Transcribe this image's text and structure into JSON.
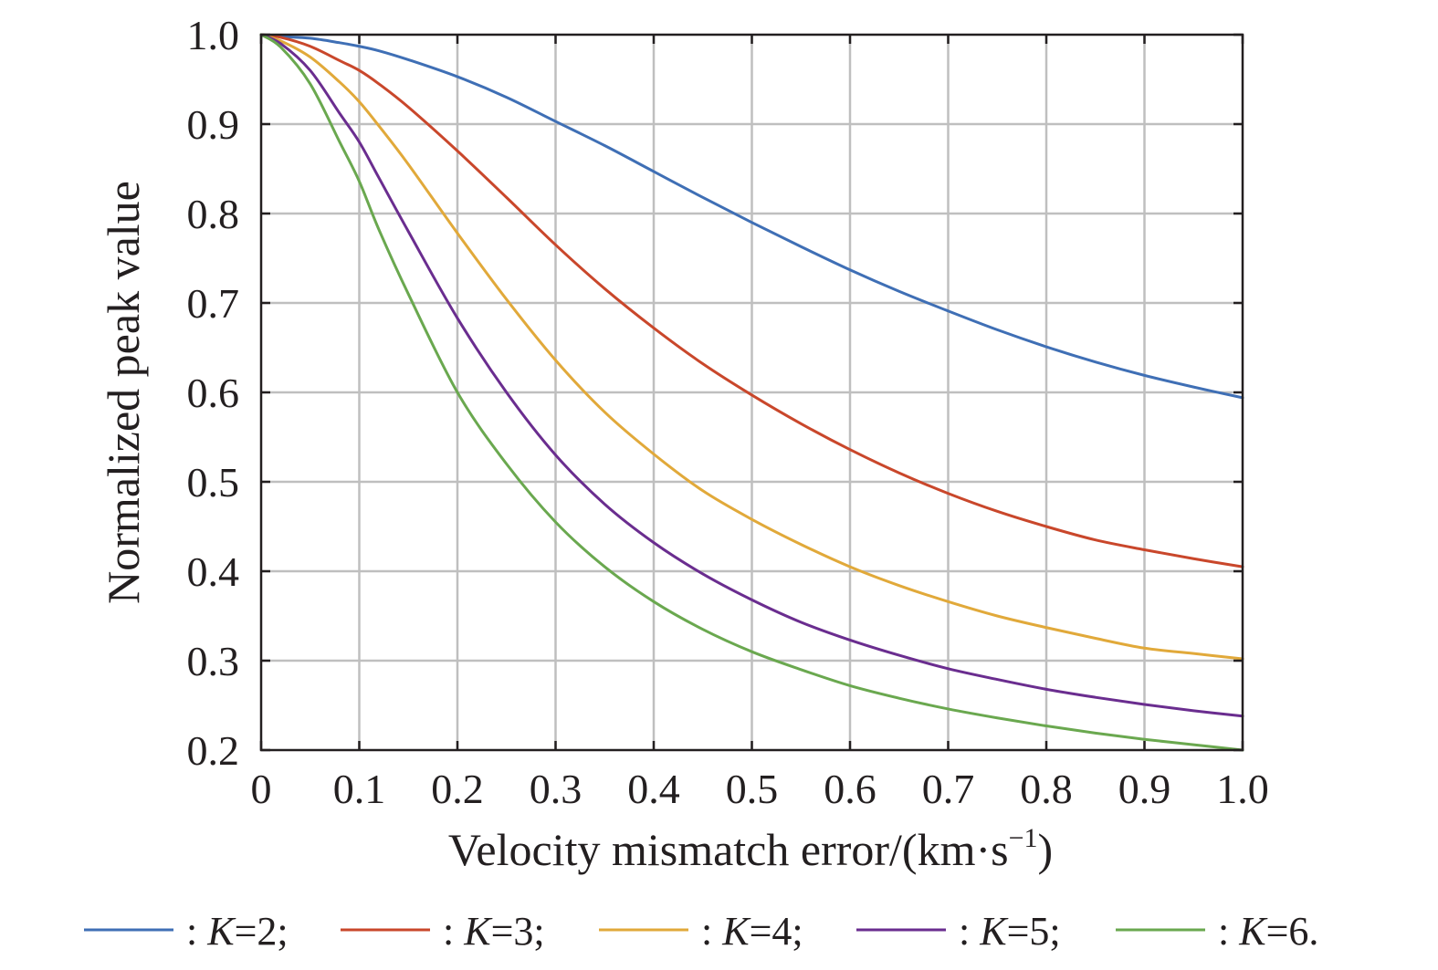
{
  "chart_data": {
    "type": "line",
    "title": "",
    "xlabel": "Velocity mismatch error/(km·s",
    "xlabel_superscript": "−1",
    "xlabel_close": ")",
    "ylabel": "Normalized peak value",
    "xlim": [
      0,
      1.0
    ],
    "ylim": [
      0.2,
      1.0
    ],
    "grid": true,
    "legend_position": "bottom",
    "x_ticks": [
      0,
      0.1,
      0.2,
      0.3,
      0.4,
      0.5,
      0.6,
      0.7,
      0.8,
      0.9,
      1.0
    ],
    "x_tick_labels": [
      "0",
      "0.1",
      "0.2",
      "0.3",
      "0.4",
      "0.5",
      "0.6",
      "0.7",
      "0.8",
      "0.9",
      "1.0"
    ],
    "y_ticks": [
      0.2,
      0.3,
      0.4,
      0.5,
      0.6,
      0.7,
      0.8,
      0.9,
      1.0
    ],
    "y_tick_labels": [
      "0.2",
      "0.3",
      "0.4",
      "0.5",
      "0.6",
      "0.7",
      "0.8",
      "0.9",
      "1.0"
    ],
    "x": [
      0,
      0.02,
      0.05,
      0.08,
      0.1,
      0.12,
      0.15,
      0.2,
      0.25,
      0.3,
      0.35,
      0.4,
      0.45,
      0.5,
      0.55,
      0.6,
      0.65,
      0.7,
      0.75,
      0.8,
      0.85,
      0.9,
      0.95,
      1.0
    ],
    "series": [
      {
        "name": "K=2",
        "legend_prefix": ": ",
        "legend_var": "K",
        "legend_suffix": "=2;",
        "color": "#3f6fb5",
        "values": [
          1.0,
          0.998,
          0.996,
          0.991,
          0.987,
          0.982,
          0.972,
          0.953,
          0.93,
          0.903,
          0.876,
          0.847,
          0.818,
          0.79,
          0.763,
          0.737,
          0.713,
          0.691,
          0.67,
          0.651,
          0.634,
          0.619,
          0.606,
          0.594
        ]
      },
      {
        "name": "K=3",
        "legend_prefix": ": ",
        "legend_var": "K",
        "legend_suffix": "=3;",
        "color": "#c9472b",
        "values": [
          1.0,
          0.997,
          0.987,
          0.971,
          0.96,
          0.945,
          0.919,
          0.87,
          0.818,
          0.765,
          0.716,
          0.672,
          0.632,
          0.597,
          0.565,
          0.536,
          0.51,
          0.487,
          0.467,
          0.45,
          0.435,
          0.424,
          0.414,
          0.405
        ]
      },
      {
        "name": "K=4",
        "legend_prefix": ": ",
        "legend_var": "K",
        "legend_suffix": "=4;",
        "color": "#e1a93a",
        "values": [
          1.0,
          0.993,
          0.975,
          0.947,
          0.925,
          0.898,
          0.855,
          0.778,
          0.704,
          0.636,
          0.578,
          0.531,
          0.49,
          0.458,
          0.43,
          0.405,
          0.384,
          0.366,
          0.35,
          0.337,
          0.325,
          0.314,
          0.308,
          0.302
        ]
      },
      {
        "name": "K=5",
        "legend_prefix": ": ",
        "legend_var": "K",
        "legend_suffix": "=5;",
        "color": "#6a2d8f",
        "values": [
          1.0,
          0.99,
          0.96,
          0.912,
          0.88,
          0.84,
          0.78,
          0.683,
          0.6,
          0.53,
          0.475,
          0.432,
          0.397,
          0.368,
          0.343,
          0.323,
          0.306,
          0.291,
          0.279,
          0.268,
          0.259,
          0.251,
          0.244,
          0.238
        ]
      },
      {
        "name": "K=6",
        "legend_prefix": ": ",
        "legend_var": "K",
        "legend_suffix": "=6.",
        "color": "#6aa84f",
        "values": [
          1.0,
          0.986,
          0.945,
          0.88,
          0.836,
          0.782,
          0.71,
          0.6,
          0.52,
          0.455,
          0.405,
          0.366,
          0.335,
          0.31,
          0.29,
          0.272,
          0.258,
          0.246,
          0.236,
          0.227,
          0.219,
          0.212,
          0.206,
          0.2
        ]
      }
    ]
  }
}
